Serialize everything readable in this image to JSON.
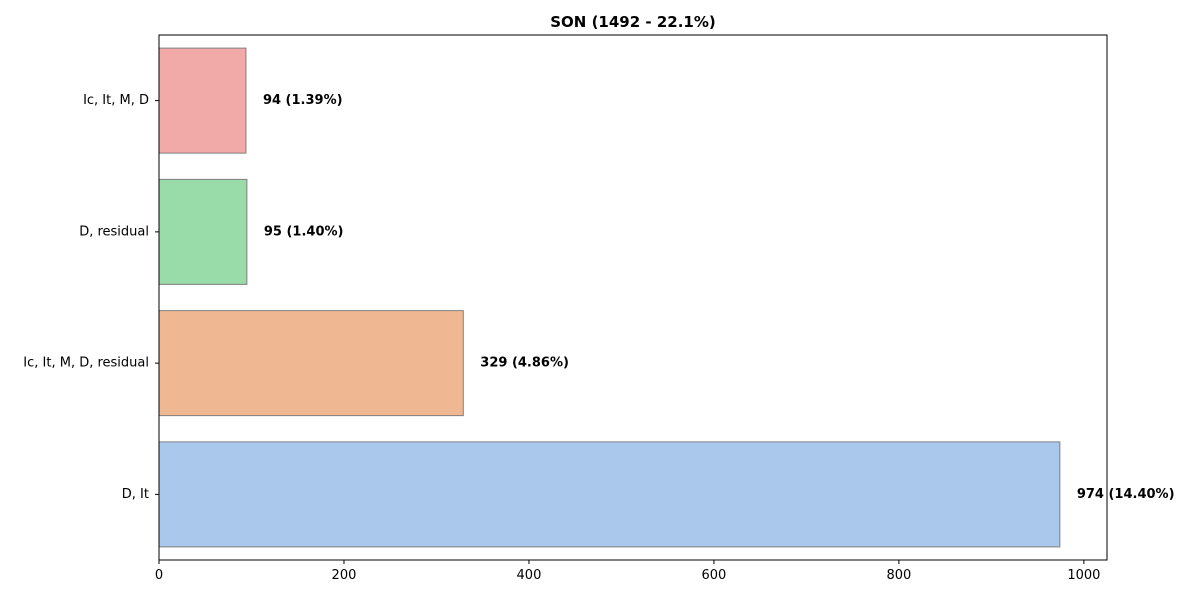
{
  "chart_data": {
    "type": "bar",
    "orientation": "horizontal",
    "title": "SON (1492 - 22.1%)",
    "xlabel": "",
    "ylabel": "",
    "xlim": [
      0,
      1025
    ],
    "x_ticks": [
      0,
      200,
      400,
      600,
      800,
      1000
    ],
    "grid": false,
    "categories": [
      "D, It",
      "Ic, It, M, D, residual",
      "D, residual",
      "Ic, It, M, D"
    ],
    "values": [
      974,
      329,
      95,
      94
    ],
    "value_labels": [
      "974 (14.40%)",
      "329 (4.86%)",
      "95 (1.40%)",
      "94 (1.39%)"
    ],
    "colors": [
      "#aac8eb",
      "#f0b892",
      "#99dba9",
      "#f2aaa8"
    ],
    "bar_edge_color": "#7f7f7f"
  }
}
